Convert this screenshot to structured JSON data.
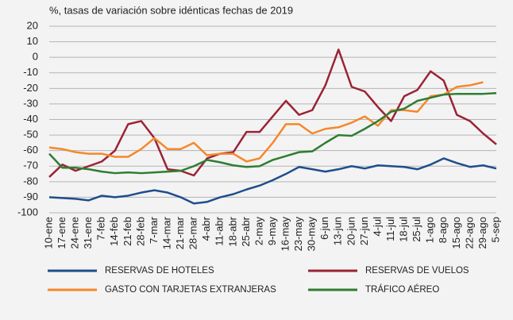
{
  "chart_data": {
    "type": "line",
    "title": "%, tasas de variación sobre idénticas fechas de 2019",
    "categories": [
      "10-ene",
      "17-ene",
      "24-ene",
      "31-ene",
      "7-feb",
      "14-feb",
      "21-feb",
      "28-feb",
      "7-mar",
      "14-mar",
      "21-mar",
      "28-mar",
      "4-abr",
      "11-abr",
      "18-abr",
      "25-abr",
      "2-may",
      "9-may",
      "16-may",
      "23-may",
      "30-may",
      "6-jun",
      "13-jun",
      "20-jun",
      "27-jun",
      "4-jul",
      "11-jul",
      "18-jul",
      "25-jul",
      "1-ago",
      "8-ago",
      "15-ago",
      "22-ago",
      "29-ago",
      "5-sep"
    ],
    "series": [
      {
        "name": "RESERVAS DE HOTELES",
        "color": "#1f4e8c",
        "values": [
          -90,
          -90.5,
          -91,
          -92,
          -89,
          -90,
          -89,
          -87,
          -85.5,
          -87,
          -90,
          -94,
          -93,
          -90,
          -88,
          -85,
          -82.5,
          -79,
          -75,
          -70.5,
          -72,
          -73.5,
          -72,
          -70,
          -71.5,
          -69.5,
          -70,
          -70.5,
          -72,
          -69,
          -65,
          -68,
          -70.5,
          -69.5,
          -71.5
        ]
      },
      {
        "name": "RESERVAS DE VUELOS",
        "color": "#9b2335",
        "values": [
          -77,
          -69,
          -73,
          -70,
          -67,
          -60,
          -43,
          -41,
          -52,
          -72,
          -73,
          -76,
          -65,
          -62,
          -61,
          -48,
          -48,
          -38,
          -28,
          -37,
          -34,
          -18,
          5,
          -19,
          -22,
          -32,
          -41,
          -25,
          -21,
          -9,
          -15,
          -37,
          -41,
          -49,
          -56
        ]
      },
      {
        "name": "GASTO CON TARJETAS EXTRANJERAS",
        "color": "#f4882a",
        "values": [
          -58,
          -59,
          -61,
          -62,
          -62,
          -64,
          -64,
          -59,
          -52,
          -59,
          -59,
          -55,
          -63,
          -62,
          -62,
          -67,
          -65,
          -55,
          -43,
          -43,
          -49,
          -46,
          -45,
          -42,
          -38,
          -44,
          -34,
          -34,
          -35,
          -25,
          -24,
          -19,
          -18,
          -16,
          null
        ]
      },
      {
        "name": "TRÁFICO AÉREO",
        "color": "#2e7d32",
        "values": [
          -62,
          -71,
          -71,
          -72,
          -73.5,
          -74.5,
          -74,
          -74.5,
          -74,
          -73.5,
          -73,
          -70,
          -66,
          -67.5,
          -69.5,
          -70.5,
          -70,
          -66,
          -63.5,
          -61,
          -60.5,
          -55,
          -50,
          -50.5,
          -46,
          -41,
          -35,
          -33,
          -28,
          -26,
          -24,
          -23.5,
          -23.5,
          -23.5,
          -23
        ]
      }
    ],
    "ylim": [
      -100,
      20
    ],
    "yticks": [
      -100,
      -90,
      -80,
      -70,
      -60,
      -50,
      -40,
      -30,
      -20,
      -10,
      0,
      10,
      20
    ],
    "grid": true
  }
}
